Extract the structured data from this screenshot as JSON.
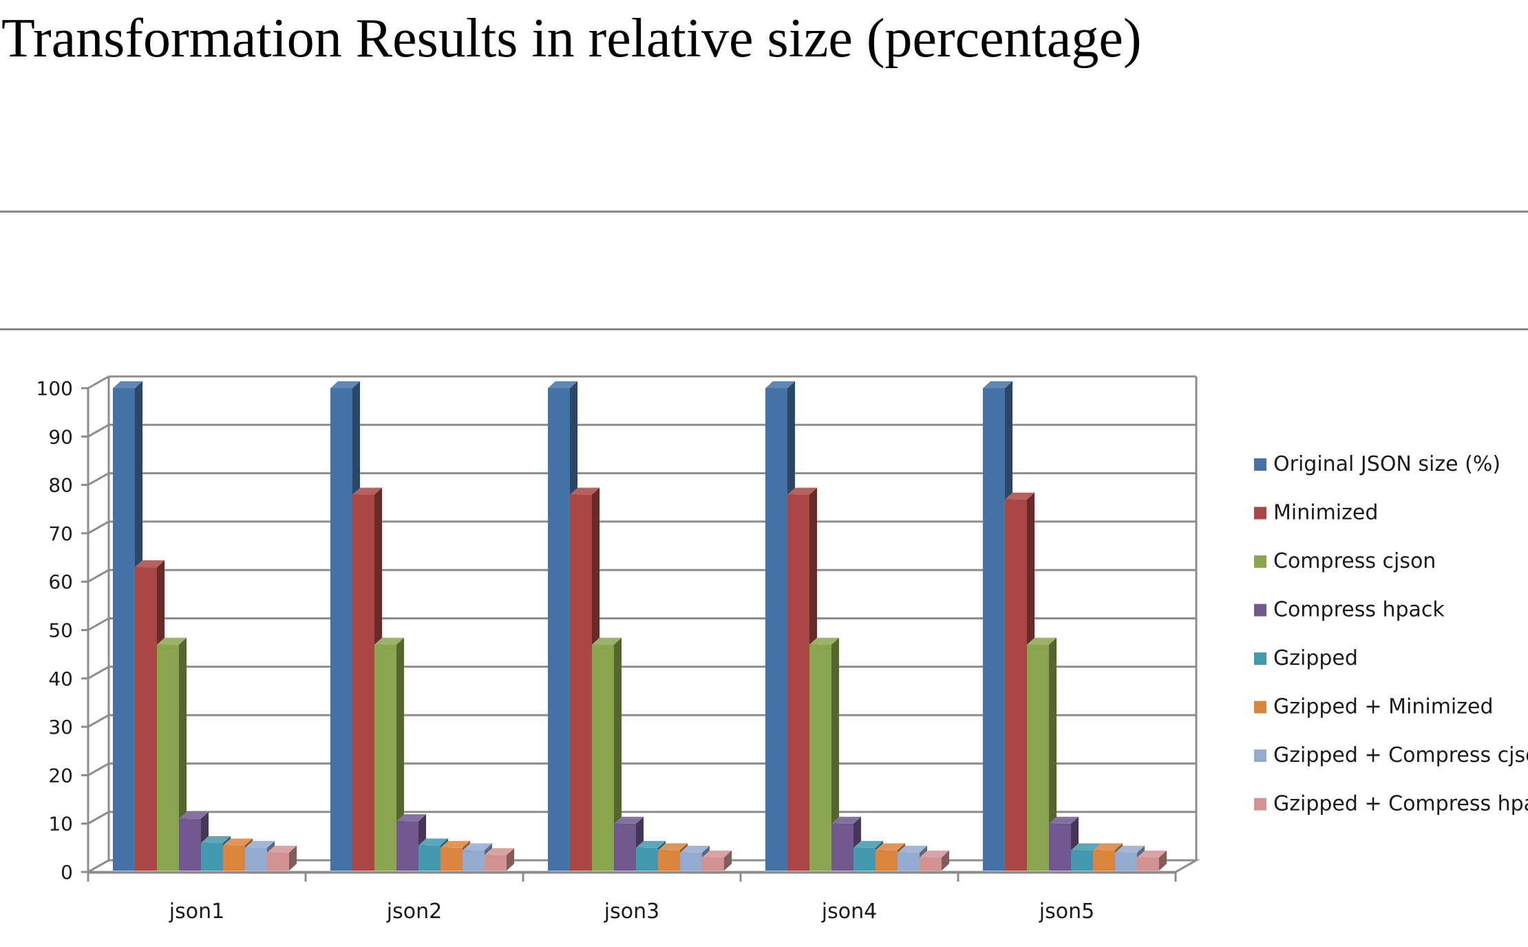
{
  "page": {
    "title": "Transformation Results in relative size (percentage)"
  },
  "chart_data": {
    "type": "bar",
    "title": "",
    "xlabel": "",
    "ylabel": "",
    "ylim": [
      0,
      100
    ],
    "yticks": [
      0,
      10,
      20,
      30,
      40,
      50,
      60,
      70,
      80,
      90,
      100
    ],
    "grid": true,
    "three_d": true,
    "legend_position": "right",
    "categories": [
      "json1",
      "json2",
      "json3",
      "json4",
      "json5"
    ],
    "series": [
      {
        "name": "Original JSON size (%)",
        "color": "#4572A7",
        "values": [
          100,
          100,
          100,
          100,
          100
        ]
      },
      {
        "name": "Minimized",
        "color": "#AA4643",
        "values": [
          63,
          78,
          78,
          78,
          77
        ]
      },
      {
        "name": "Compress cjson",
        "color": "#89A54E",
        "values": [
          47,
          47,
          47,
          47,
          47
        ]
      },
      {
        "name": "Compress hpack",
        "color": "#71588F",
        "values": [
          11,
          10.5,
          10,
          10,
          10
        ]
      },
      {
        "name": "Gzipped",
        "color": "#4198AF",
        "values": [
          6,
          5.5,
          5,
          5,
          4.5
        ]
      },
      {
        "name": "Gzipped + Minimized",
        "color": "#DB843D",
        "values": [
          5.5,
          5,
          4.5,
          4.5,
          4.5
        ]
      },
      {
        "name": "Gzipped + Compress cjson",
        "color": "#93A9CF",
        "values": [
          5,
          4.5,
          4,
          4,
          4
        ]
      },
      {
        "name": "Gzipped + Compress hpack",
        "color": "#D19392",
        "values": [
          4,
          3.5,
          3,
          3,
          3
        ]
      }
    ]
  }
}
